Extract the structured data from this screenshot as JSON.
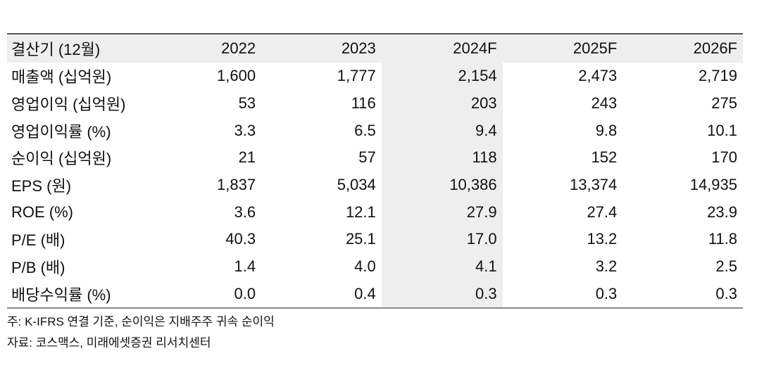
{
  "table": {
    "header": {
      "label": "결산기 (12월)",
      "years": [
        "2022",
        "2023",
        "2024F",
        "2025F",
        "2026F"
      ]
    },
    "rows": [
      {
        "label": "매출액 (십억원)",
        "values": [
          "1,600",
          "1,777",
          "2,154",
          "2,473",
          "2,719"
        ]
      },
      {
        "label": "영업이익 (십억원)",
        "values": [
          "53",
          "116",
          "203",
          "243",
          "275"
        ]
      },
      {
        "label": "영업이익률 (%)",
        "values": [
          "3.3",
          "6.5",
          "9.4",
          "9.8",
          "10.1"
        ]
      },
      {
        "label": "순이익 (십억원)",
        "values": [
          "21",
          "57",
          "118",
          "152",
          "170"
        ]
      },
      {
        "label": "EPS (원)",
        "values": [
          "1,837",
          "5,034",
          "10,386",
          "13,374",
          "14,935"
        ]
      },
      {
        "label": "ROE (%)",
        "values": [
          "3.6",
          "12.1",
          "27.9",
          "27.4",
          "23.9"
        ]
      },
      {
        "label": "P/E (배)",
        "values": [
          "40.3",
          "25.1",
          "17.0",
          "13.2",
          "11.8"
        ]
      },
      {
        "label": "P/B (배)",
        "values": [
          "1.4",
          "4.0",
          "4.1",
          "3.2",
          "2.5"
        ]
      },
      {
        "label": "배당수익률 (%)",
        "values": [
          "0.0",
          "0.4",
          "0.3",
          "0.3",
          "0.3"
        ]
      }
    ]
  },
  "notes": {
    "note": "주: K-IFRS 연결 기준, 순이익은 지배주주 귀속 순이익",
    "source": "자료: 코스맥스, 미래에셋증권 리서치센터"
  }
}
